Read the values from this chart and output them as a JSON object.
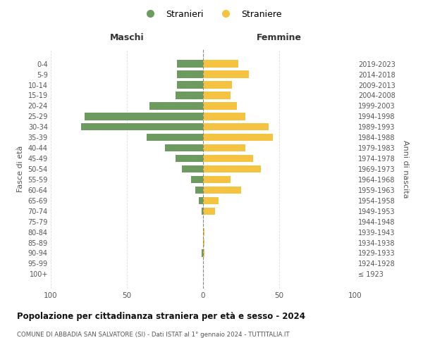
{
  "age_groups": [
    "100+",
    "95-99",
    "90-94",
    "85-89",
    "80-84",
    "75-79",
    "70-74",
    "65-69",
    "60-64",
    "55-59",
    "50-54",
    "45-49",
    "40-44",
    "35-39",
    "30-34",
    "25-29",
    "20-24",
    "15-19",
    "10-14",
    "5-9",
    "0-4"
  ],
  "birth_years": [
    "≤ 1923",
    "1924-1928",
    "1929-1933",
    "1934-1938",
    "1939-1943",
    "1944-1948",
    "1949-1953",
    "1954-1958",
    "1959-1963",
    "1964-1968",
    "1969-1973",
    "1974-1978",
    "1979-1983",
    "1984-1988",
    "1989-1993",
    "1994-1998",
    "1999-2003",
    "2004-2008",
    "2009-2013",
    "2014-2018",
    "2019-2023"
  ],
  "stranieri": [
    0,
    0,
    1,
    0,
    0,
    0,
    1,
    3,
    5,
    8,
    14,
    18,
    25,
    37,
    80,
    78,
    35,
    18,
    17,
    17,
    17
  ],
  "straniere": [
    0,
    0,
    1,
    1,
    1,
    0,
    8,
    10,
    25,
    18,
    38,
    33,
    28,
    46,
    43,
    28,
    22,
    18,
    19,
    30,
    23
  ],
  "color_stranieri": "#6d9b5f",
  "color_straniere": "#f5c342",
  "xlim": 100,
  "title": "Popolazione per cittadinanza straniera per età e sesso - 2024",
  "subtitle": "COMUNE DI ABBADIA SAN SALVATORE (SI) - Dati ISTAT al 1° gennaio 2024 - TUTTITALIA.IT",
  "ylabel_left": "Fasce di età",
  "ylabel_right": "Anni di nascita",
  "header_left": "Maschi",
  "header_right": "Femmine",
  "legend_stranieri": "Stranieri",
  "legend_straniere": "Straniere",
  "bg_color": "#ffffff",
  "grid_color": "#dddddd",
  "text_color": "#555555",
  "title_color": "#111111"
}
